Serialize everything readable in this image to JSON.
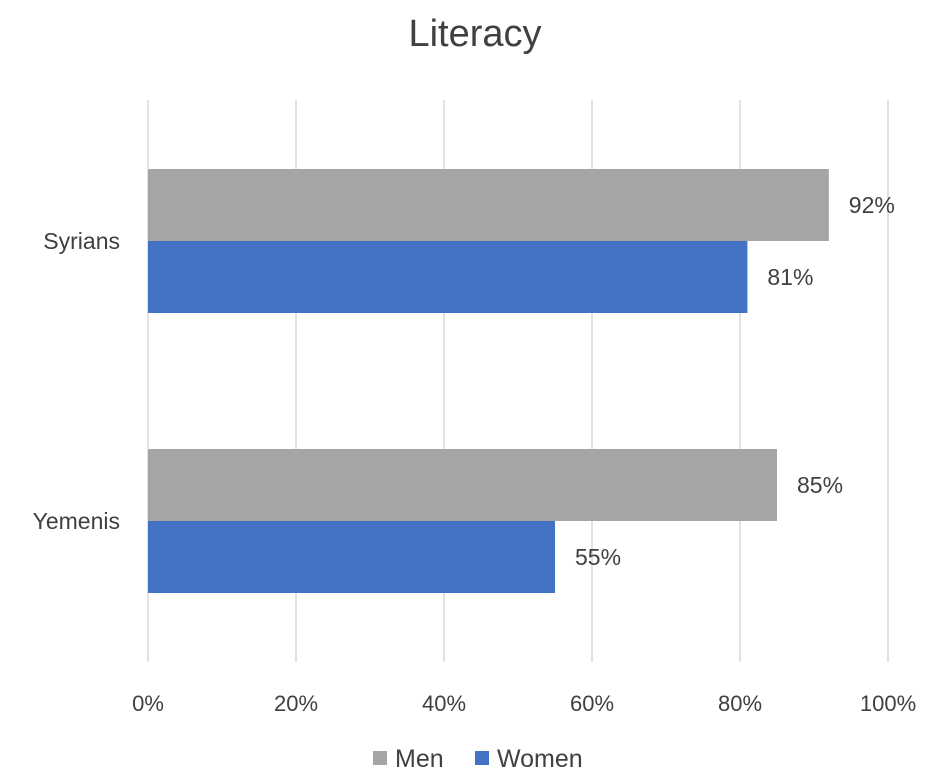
{
  "chart_data": {
    "type": "bar",
    "orientation": "horizontal",
    "title": "Literacy",
    "categories": [
      "Syrians",
      "Yemenis"
    ],
    "series": [
      {
        "name": "Men",
        "values": [
          92,
          85
        ],
        "labels": [
          "92%",
          "85%"
        ],
        "color": "#a5a5a5"
      },
      {
        "name": "Women",
        "values": [
          81,
          55
        ],
        "labels": [
          "81%",
          "55%"
        ],
        "color": "#4472c4"
      }
    ],
    "xlim": [
      0,
      100
    ],
    "x_ticks": [
      0,
      20,
      40,
      60,
      80,
      100
    ],
    "x_tick_labels": [
      "0%",
      "20%",
      "40%",
      "60%",
      "80%",
      "100%"
    ],
    "xlabel": "",
    "ylabel": "",
    "grid": "vertical",
    "legend_position": "bottom"
  }
}
